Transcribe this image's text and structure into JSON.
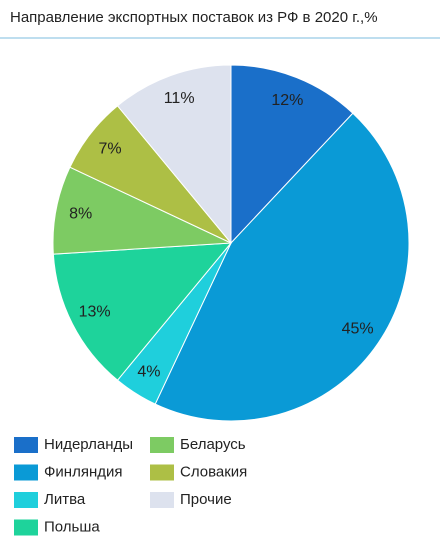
{
  "chart_data": {
    "type": "pie",
    "title": "Направление экспортных поставок из РФ в 2020 г.,%",
    "categories": [
      "Нидерланды",
      "Финляндия",
      "Литва",
      "Польша",
      "Беларусь",
      "Словакия",
      "Прочие"
    ],
    "values": [
      12,
      45,
      4,
      13,
      8,
      7,
      11
    ],
    "value_labels": [
      "12%",
      "45%",
      "4%",
      "13%",
      "8%",
      "7%",
      "11%"
    ],
    "colors": [
      "#1a6fc9",
      "#0a9ad6",
      "#1fcfdc",
      "#1ed39b",
      "#7dcb63",
      "#adbf45",
      "#dde2ee"
    ],
    "legend": "bottom"
  }
}
